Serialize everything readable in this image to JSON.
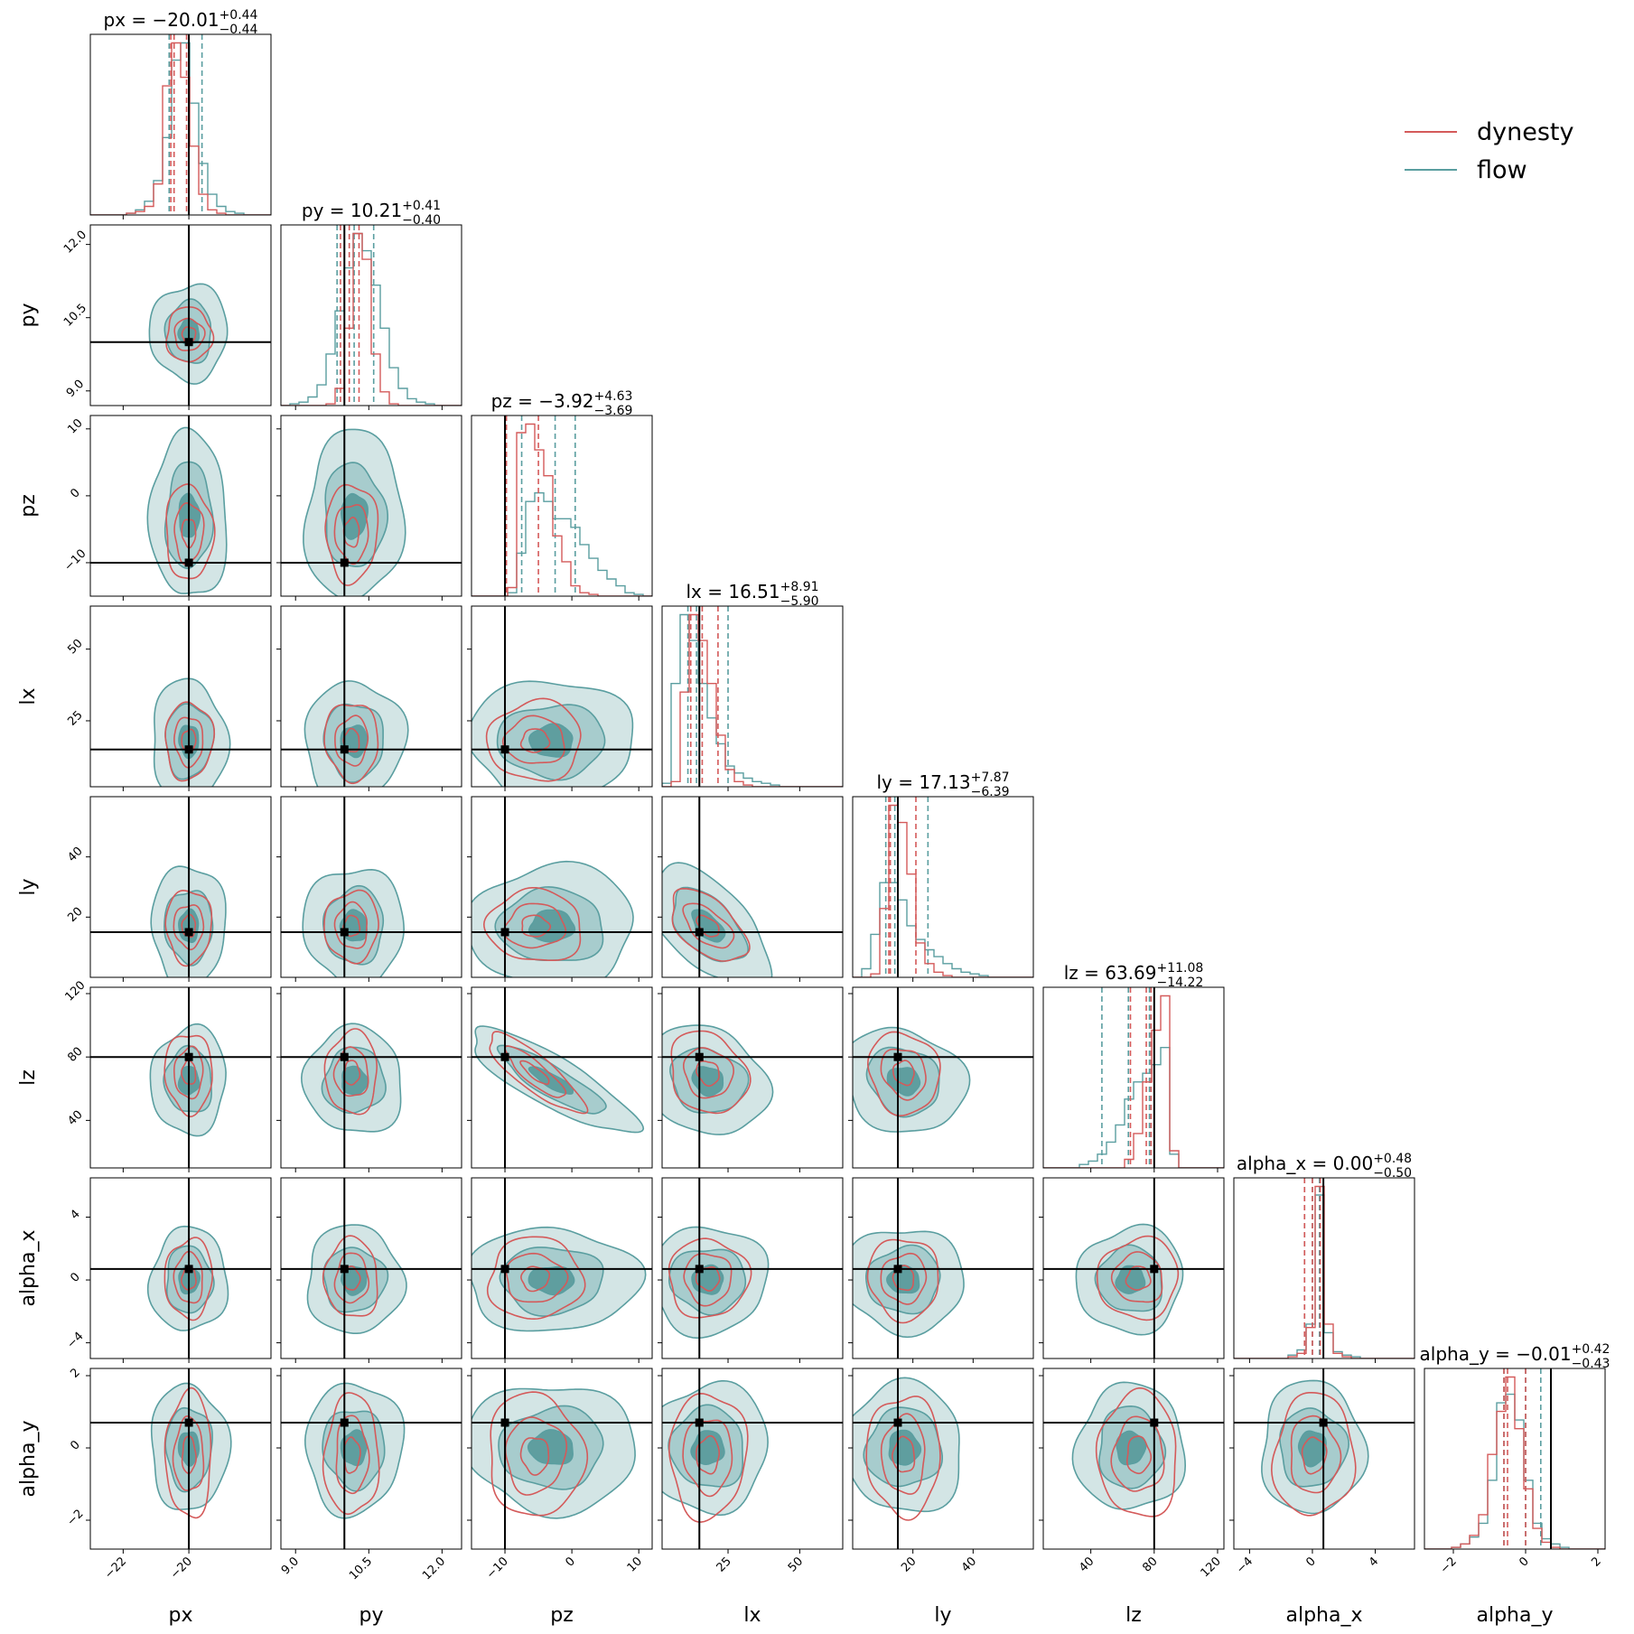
{
  "chart_data": {
    "type": "corner",
    "params": [
      "px",
      "py",
      "pz",
      "lx",
      "ly",
      "lz",
      "alpha_x",
      "alpha_y"
    ],
    "truths": [
      -20.0,
      10.0,
      -10.0,
      15.0,
      15.0,
      80.0,
      0.7,
      0.7
    ],
    "ranges": [
      [
        -23.0,
        -17.5
      ],
      [
        8.7,
        12.4
      ],
      [
        -15.0,
        12.0
      ],
      [
        2.0,
        65.0
      ],
      [
        0.0,
        60.0
      ],
      [
        10.0,
        124.0
      ],
      [
        -5.0,
        6.5
      ],
      [
        -2.8,
        2.2
      ]
    ],
    "ticks": [
      {
        "values": [
          -22,
          -20
        ],
        "labels": [
          "−22",
          "−20"
        ]
      },
      {
        "values": [
          9.0,
          10.5,
          12.0
        ],
        "labels": [
          "9.0",
          "10.5",
          "12.0"
        ]
      },
      {
        "values": [
          -10,
          0,
          10
        ],
        "labels": [
          "−10",
          "0",
          "10"
        ]
      },
      {
        "values": [
          25,
          50
        ],
        "labels": [
          "25",
          "50"
        ]
      },
      {
        "values": [
          20,
          40
        ],
        "labels": [
          "20",
          "40"
        ]
      },
      {
        "values": [
          40,
          80,
          120
        ],
        "labels": [
          "40",
          "80",
          "120"
        ]
      },
      {
        "values": [
          -4,
          0,
          4
        ],
        "labels": [
          "−4",
          "0",
          "4"
        ]
      },
      {
        "values": [
          -2,
          0,
          2
        ],
        "labels": [
          "−2",
          "0",
          "2"
        ]
      }
    ],
    "titles": [
      {
        "text": "px = −20.01",
        "sup": "+0.44",
        "sub": "−0.44"
      },
      {
        "text": "py = 10.21",
        "sup": "+0.41",
        "sub": "−0.40"
      },
      {
        "text": "pz = −3.92",
        "sup": "+4.63",
        "sub": "−3.69"
      },
      {
        "text": "lx = 16.51",
        "sup": "+8.91",
        "sub": "−5.90"
      },
      {
        "text": "ly = 17.13",
        "sup": "+7.87",
        "sub": "−6.39"
      },
      {
        "text": "lz = 63.69",
        "sup": "+11.08",
        "sub": "−14.22"
      },
      {
        "text": "alpha_x = 0.00",
        "sup": "+0.48",
        "sub": "−0.50"
      },
      {
        "text": "alpha_y = −0.01",
        "sup": "+0.42",
        "sub": "−0.43"
      }
    ],
    "series": [
      {
        "name": "dynesty",
        "color": "#d45a5a",
        "quantiles": [
          [
            -20.55,
            -20.45,
            -20.07
          ],
          [
            9.92,
            10.1,
            10.3
          ],
          [
            -9.8,
            -9.8,
            -5.0
          ],
          [
            12.0,
            16.0,
            21.5
          ],
          [
            12.0,
            12.5,
            21.0
          ],
          [
            65.0,
            75.0,
            78.0
          ],
          [
            -0.5,
            0.0,
            0.5
          ],
          [
            -0.6,
            -0.5,
            0.0
          ]
        ],
        "marginals": [
          {
            "lo": -23.0,
            "hi": -17.5,
            "counts": [
              0,
              0,
              0,
              0,
              1,
              2,
              5,
              18,
              75,
              100,
              80,
              40,
              12,
              3,
              1,
              0,
              0,
              0,
              0,
              0
            ]
          },
          {
            "lo": 8.7,
            "hi": 12.4,
            "counts": [
              0,
              0,
              0,
              0,
              0,
              1,
              10,
              45,
              100,
              85,
              30,
              8,
              1,
              0,
              0,
              0,
              0,
              0,
              0,
              0
            ]
          },
          {
            "lo": -15.0,
            "hi": 12.0,
            "counts": [
              0,
              0,
              0,
              0,
              5,
              95,
              100,
              85,
              70,
              35,
              20,
              6,
              2,
              1,
              0,
              0,
              0,
              0,
              0,
              0
            ]
          },
          {
            "lo": 2.0,
            "hi": 65.0,
            "counts": [
              0,
              3,
              55,
              100,
              85,
              60,
              30,
              10,
              3,
              1,
              0,
              0,
              0,
              0,
              0,
              0,
              0,
              0,
              0,
              0
            ]
          },
          {
            "lo": 0.0,
            "hi": 60.0,
            "counts": [
              0,
              0,
              2,
              40,
              100,
              90,
              60,
              20,
              8,
              3,
              1,
              0,
              0,
              0,
              0,
              0,
              0,
              0,
              0,
              0
            ]
          },
          {
            "lo": 10.0,
            "hi": 124.0,
            "counts": [
              0,
              0,
              0,
              0,
              0,
              0,
              0,
              0,
              0,
              5,
              20,
              50,
              80,
              100,
              10,
              0,
              0,
              0,
              0,
              0
            ]
          },
          {
            "lo": -5.0,
            "hi": 6.5,
            "counts": [
              0,
              0,
              0,
              0,
              0,
              0,
              1,
              3,
              18,
              100,
              20,
              3,
              1,
              0,
              0,
              0,
              0,
              0,
              0,
              0
            ]
          },
          {
            "lo": -2.8,
            "hi": 2.2,
            "counts": [
              0,
              0,
              0,
              1,
              3,
              8,
              20,
              55,
              80,
              100,
              70,
              35,
              12,
              4,
              1,
              0,
              0,
              0,
              0,
              0
            ]
          }
        ]
      },
      {
        "name": "flow",
        "color": "#5a9ea0",
        "quantiles": [
          [
            -20.6,
            -20.0,
            -19.6
          ],
          [
            9.85,
            10.2,
            10.6
          ],
          [
            -7.5,
            -2.5,
            0.5
          ],
          [
            11.0,
            14.0,
            25.0
          ],
          [
            11.0,
            14.0,
            25.0
          ],
          [
            47.0,
            63.7,
            77.0
          ],
          [
            -0.5,
            0.0,
            0.45
          ],
          [
            -0.6,
            0.0,
            0.42
          ]
        ],
        "marginals": [
          {
            "lo": -23.0,
            "hi": -17.5,
            "counts": [
              0,
              0,
              0,
              0,
              1,
              3,
              8,
              20,
              45,
              90,
              100,
              65,
              30,
              12,
              5,
              2,
              1,
              0,
              0,
              0
            ]
          },
          {
            "lo": 8.7,
            "hi": 12.4,
            "counts": [
              0,
              1,
              2,
              5,
              12,
              30,
              55,
              80,
              100,
              90,
              70,
              45,
              22,
              10,
              4,
              2,
              1,
              0,
              0,
              0
            ]
          },
          {
            "lo": -15.0,
            "hi": 12.0,
            "counts": [
              0,
              0,
              0,
              0,
              2,
              25,
              55,
              60,
              55,
              45,
              45,
              40,
              30,
              22,
              15,
              10,
              6,
              2,
              1,
              0
            ]
          },
          {
            "lo": 2.0,
            "hi": 65.0,
            "counts": [
              2,
              60,
              100,
              85,
              60,
              40,
              25,
              12,
              8,
              5,
              3,
              2,
              1,
              0,
              0,
              0,
              0,
              0,
              0,
              0
            ]
          },
          {
            "lo": 0.0,
            "hi": 60.0,
            "counts": [
              0,
              5,
              25,
              55,
              55,
              45,
              30,
              22,
              16,
              12,
              8,
              5,
              3,
              2,
              1,
              0,
              0,
              0,
              0,
              0
            ]
          },
          {
            "lo": 10.0,
            "hi": 124.0,
            "counts": [
              0,
              0,
              0,
              0,
              2,
              4,
              8,
              15,
              25,
              40,
              50,
              55,
              60,
              70,
              8,
              0,
              0,
              0,
              0,
              0
            ]
          },
          {
            "lo": -5.0,
            "hi": 6.5,
            "counts": [
              0,
              0,
              0,
              0,
              0,
              0,
              2,
              5,
              20,
              95,
              15,
              4,
              2,
              1,
              0,
              0,
              0,
              0,
              0,
              0
            ]
          },
          {
            "lo": -2.8,
            "hi": 2.2,
            "counts": [
              0,
              0,
              0,
              1,
              3,
              7,
              15,
              40,
              85,
              90,
              75,
              40,
              15,
              6,
              3,
              1,
              0,
              0,
              0,
              0
            ]
          }
        ]
      }
    ],
    "contours": {
      "dynesty_centers": [
        -20.0,
        10.15,
        -5.5,
        18.0,
        17.0,
        70.0,
        0.1,
        -0.2
      ],
      "dynesty_sigmas": [
        0.42,
        0.32,
        4.2,
        8.0,
        7.0,
        15.0,
        1.5,
        1.0
      ],
      "flow_centers": [
        -20.0,
        10.2,
        -3.0,
        18.0,
        17.0,
        65.0,
        0.0,
        0.0
      ],
      "flow_sigmas": [
        0.55,
        0.48,
        6.0,
        10.0,
        9.5,
        16.0,
        1.6,
        0.85
      ],
      "correlations": [
        {
          "i": 5,
          "j": 2,
          "rho": -0.85
        },
        {
          "i": 4,
          "j": 3,
          "rho": -0.55
        },
        {
          "i": 5,
          "j": 3,
          "rho": -0.15
        },
        {
          "i": 5,
          "j": 4,
          "rho": -0.15
        }
      ]
    },
    "legend": {
      "position": "top-right",
      "entries": [
        "dynesty",
        "flow"
      ]
    }
  }
}
